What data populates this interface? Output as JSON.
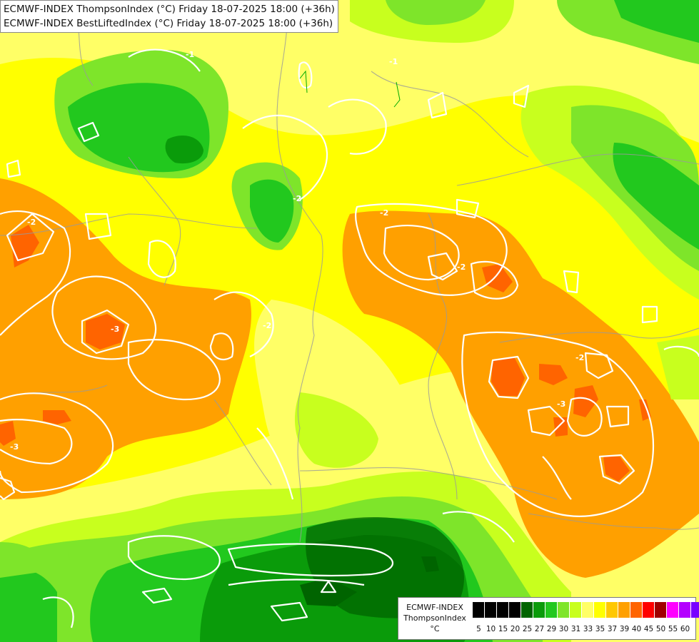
{
  "titles": {
    "line1": "ECMWF-INDEX ThompsonIndex (°C) Friday 18-07-2025 18:00 (+36h)",
    "line2": "ECMWF-INDEX BestLiftedIndex (°C) Friday 18-07-2025 18:00 (+36h)"
  },
  "legend": {
    "line1": "ECMWF-INDEX",
    "line2": "ThompsonIndex",
    "unit": "°C",
    "colors": [
      "#000000",
      "#000000",
      "#000000",
      "#000000",
      "#006400",
      "#0a9b0a",
      "#22c81e",
      "#7ee52a",
      "#c8ff1e",
      "#ffff66",
      "#ffff00",
      "#ffc800",
      "#ffa000",
      "#ff6400",
      "#ff0000",
      "#a00000",
      "#ff00ff",
      "#b400ff",
      "#7800ff",
      "#0000ff"
    ],
    "ticks": [
      "5",
      "10",
      "15",
      "20",
      "25",
      "27",
      "29",
      "30",
      "31",
      "33",
      "35",
      "37",
      "39",
      "40",
      "45",
      "50",
      "55",
      "60"
    ]
  },
  "contour_labels": [
    "-2",
    "-1",
    "-2",
    "-3",
    "-2",
    "-2",
    "-3",
    "-2",
    "-2",
    "-1",
    "-3"
  ]
}
